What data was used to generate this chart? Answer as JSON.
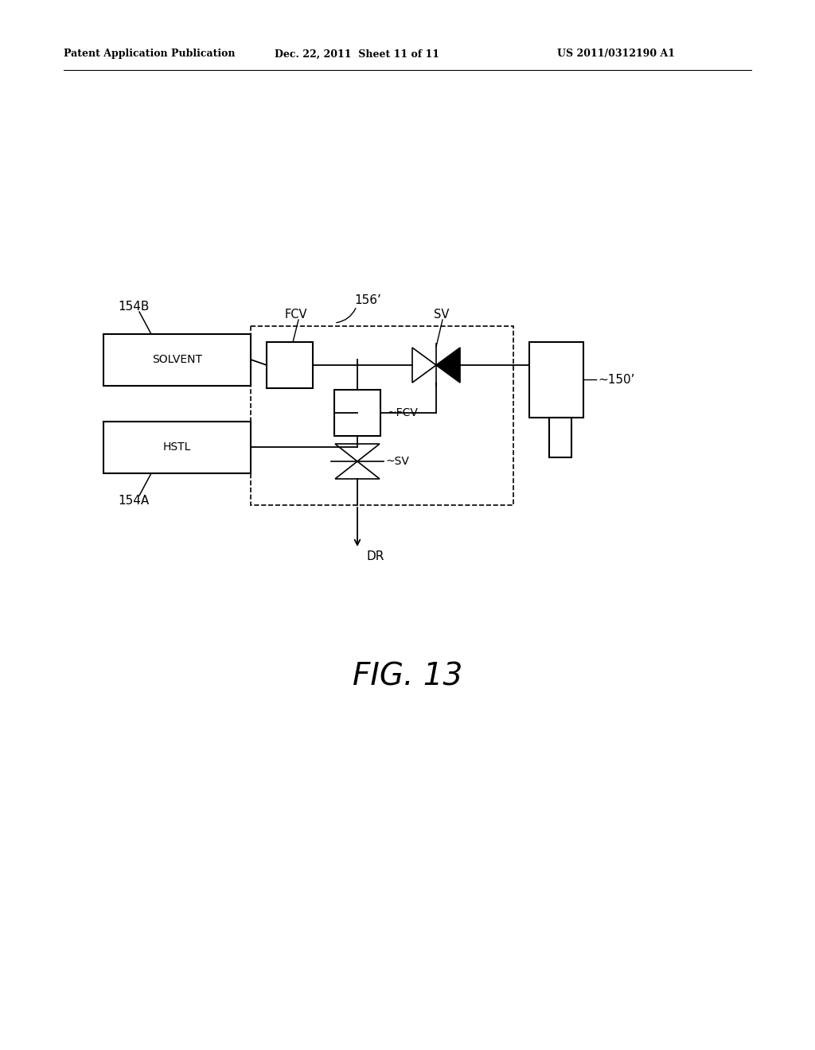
{
  "bg_color": "#ffffff",
  "header_text": "Patent Application Publication",
  "header_date": "Dec. 22, 2011  Sheet 11 of 11",
  "header_patent": "US 2011/0312190 A1",
  "fig_label": "FIG. 13",
  "label_154B": "154B",
  "label_154A": "154A",
  "label_156prime": "156’",
  "label_150prime": "~150’",
  "label_SOLVENT": "SOLVENT",
  "label_HSTL": "HSTL",
  "label_FCV_top": "FCV",
  "label_SV_top": "SV",
  "label_FCV_mid": "~FCV",
  "label_SV_bot": "~SV",
  "label_DR": "DR"
}
